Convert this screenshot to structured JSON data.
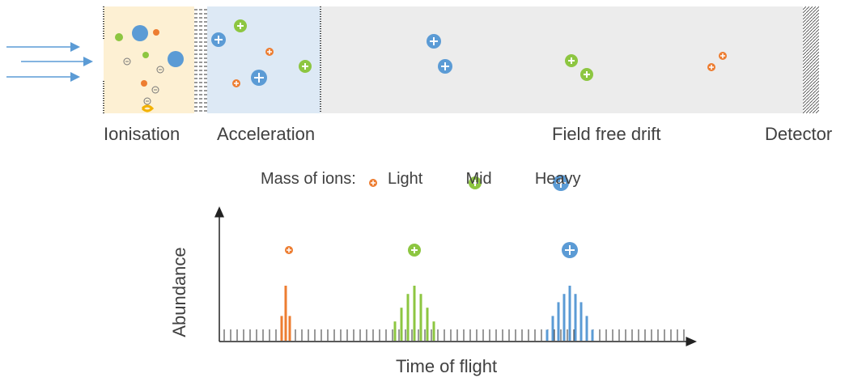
{
  "stages": {
    "ionisation": "Ionisation",
    "acceleration": "Acceleration",
    "drift": "Field free drift",
    "detector": "Detector"
  },
  "legend": {
    "title": "Mass of ions:",
    "light": "Light",
    "mid": "Mid",
    "heavy": "Heavy"
  },
  "colors": {
    "light": "#ed7d31",
    "mid": "#8dc641",
    "heavy": "#5b9bd5",
    "ionisation_bg": "#fdf0d3",
    "acceleration_bg": "#dde9f5",
    "drift_bg": "#ececec"
  },
  "chart_data": {
    "type": "bar",
    "ylabel": "Abundance",
    "xlabel": "Time of flight",
    "series": [
      {
        "ion": "light",
        "heights": [
          0.45,
          1.0,
          0.45
        ]
      },
      {
        "ion": "mid",
        "heights": [
          0.35,
          0.6,
          0.85,
          1.0,
          0.85,
          0.6,
          0.35
        ]
      },
      {
        "ion": "heavy",
        "heights": [
          0.2,
          0.45,
          0.7,
          0.85,
          1.0,
          0.85,
          0.7,
          0.45,
          0.2
        ]
      }
    ]
  }
}
